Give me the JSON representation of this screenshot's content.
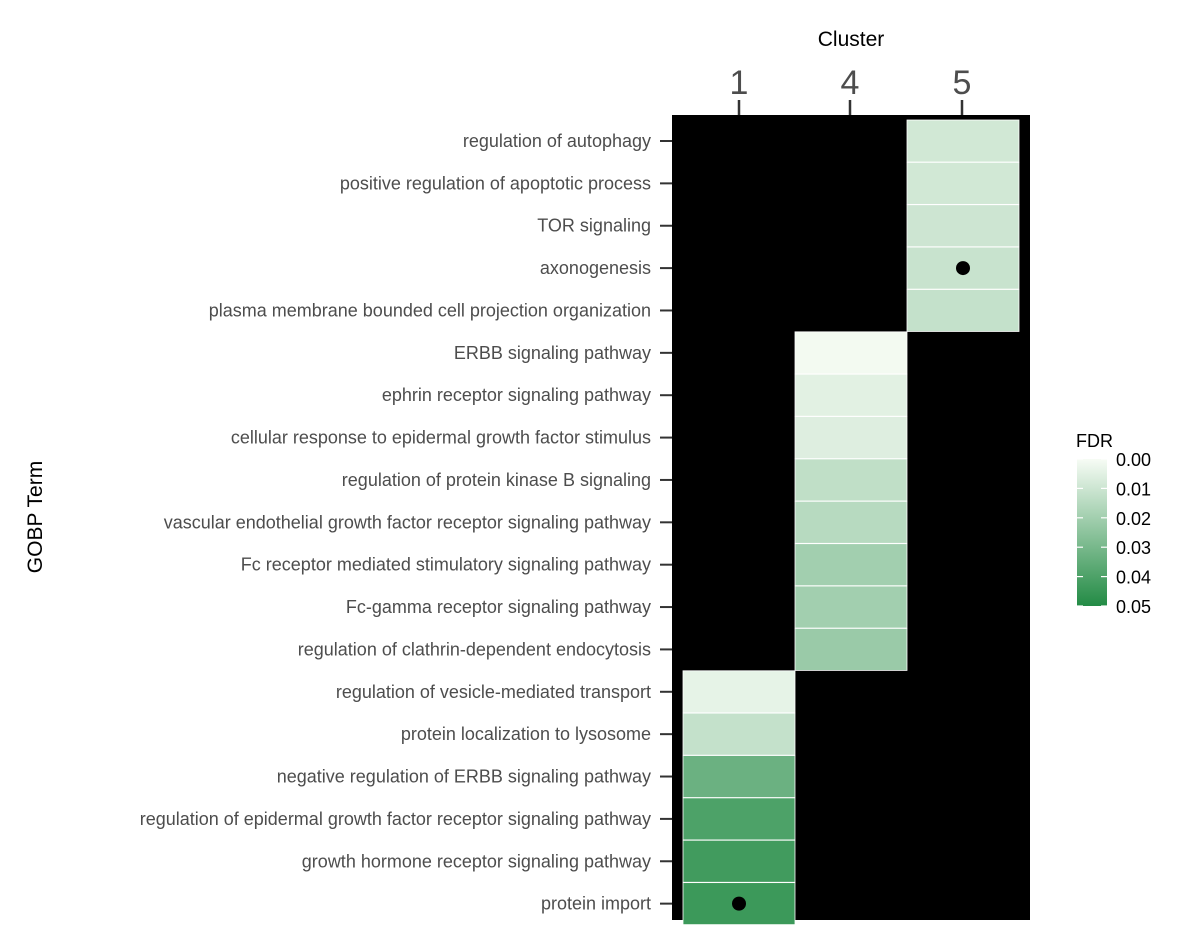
{
  "chart_data": {
    "type": "heatmap",
    "xlabel": "Cluster",
    "ylabel": "GOBP Term",
    "x_categories": [
      "1",
      "4",
      "5"
    ],
    "y_categories": [
      "regulation of autophagy",
      "positive regulation of apoptotic process",
      "TOR signaling",
      "axonogenesis",
      "plasma membrane bounded cell projection organization",
      "ERBB signaling pathway",
      "ephrin receptor signaling pathway",
      "cellular response to epidermal growth factor stimulus",
      "regulation of protein kinase B signaling",
      "vascular endothelial growth factor receptor signaling pathway",
      "Fc receptor mediated stimulatory signaling pathway",
      "Fc-gamma receptor signaling pathway",
      "regulation of clathrin-dependent endocytosis",
      "regulation of vesicle-mediated transport",
      "protein localization to lysosome",
      "negative regulation of ERBB signaling pathway",
      "regulation of epidermal growth factor receptor signaling pathway",
      "growth hormone receptor signaling pathway",
      "protein import"
    ],
    "cells": [
      {
        "term": "regulation of autophagy",
        "cluster": "5",
        "fdr": 0.009,
        "dot": false
      },
      {
        "term": "positive regulation of apoptotic process",
        "cluster": "5",
        "fdr": 0.009,
        "dot": false
      },
      {
        "term": "TOR signaling",
        "cluster": "5",
        "fdr": 0.01,
        "dot": false
      },
      {
        "term": "axonogenesis",
        "cluster": "5",
        "fdr": 0.011,
        "dot": true
      },
      {
        "term": "plasma membrane bounded cell projection organization",
        "cluster": "5",
        "fdr": 0.012,
        "dot": false
      },
      {
        "term": "ERBB signaling pathway",
        "cluster": "4",
        "fdr": 0.001,
        "dot": false
      },
      {
        "term": "ephrin receptor signaling pathway",
        "cluster": "4",
        "fdr": 0.005,
        "dot": false
      },
      {
        "term": "cellular response to epidermal growth factor stimulus",
        "cluster": "4",
        "fdr": 0.006,
        "dot": false
      },
      {
        "term": "regulation of protein kinase B signaling",
        "cluster": "4",
        "fdr": 0.013,
        "dot": false
      },
      {
        "term": "vascular endothelial growth factor receptor signaling pathway",
        "cluster": "4",
        "fdr": 0.015,
        "dot": false
      },
      {
        "term": "Fc receptor mediated stimulatory signaling pathway",
        "cluster": "4",
        "fdr": 0.02,
        "dot": false
      },
      {
        "term": "Fc-gamma receptor signaling pathway",
        "cluster": "4",
        "fdr": 0.02,
        "dot": false
      },
      {
        "term": "regulation of clathrin-dependent endocytosis",
        "cluster": "4",
        "fdr": 0.022,
        "dot": false
      },
      {
        "term": "regulation of vesicle-mediated transport",
        "cluster": "1",
        "fdr": 0.004,
        "dot": false
      },
      {
        "term": "protein localization to lysosome",
        "cluster": "1",
        "fdr": 0.012,
        "dot": false
      },
      {
        "term": "negative regulation of ERBB signaling pathway",
        "cluster": "1",
        "fdr": 0.033,
        "dot": false
      },
      {
        "term": "regulation of epidermal growth factor receptor signaling pathway",
        "cluster": "1",
        "fdr": 0.04,
        "dot": false
      },
      {
        "term": "growth hormone receptor signaling pathway",
        "cluster": "1",
        "fdr": 0.043,
        "dot": false
      },
      {
        "term": "protein import",
        "cluster": "1",
        "fdr": 0.044,
        "dot": true
      }
    ],
    "background_color": "#000000",
    "color_scale": {
      "low_value": 0.0,
      "high_value": 0.05,
      "low_color": "#f7fcf5",
      "high_color": "#238b45"
    },
    "legend": {
      "title": "FDR",
      "position": "right",
      "labels": [
        "0.00",
        "0.01",
        "0.02",
        "0.03",
        "0.04",
        "0.05"
      ],
      "values": [
        0.0,
        0.01,
        0.02,
        0.03,
        0.04,
        0.05
      ]
    },
    "grid": false
  }
}
